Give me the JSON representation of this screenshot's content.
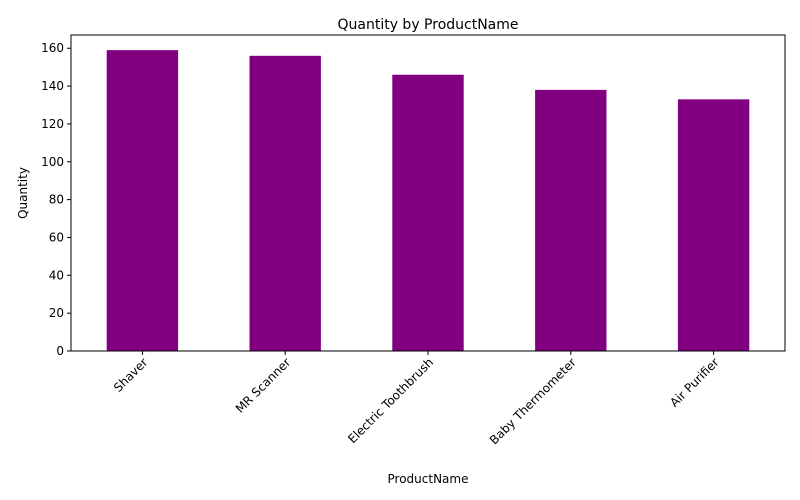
{
  "chart_data": {
    "type": "bar",
    "title": "Quantity by ProductName",
    "xlabel": "ProductName",
    "ylabel": "Quantity",
    "categories": [
      "Shaver",
      "MR Scanner",
      "Electric Toothbrush",
      "Baby Thermometer",
      "Air Purifier"
    ],
    "values": [
      159,
      156,
      146,
      138,
      133
    ],
    "ylim": [
      0,
      167
    ],
    "yticks": [
      "0",
      "20",
      "40",
      "60",
      "80",
      "100",
      "120",
      "140",
      "160"
    ],
    "bar_color": "#800080",
    "grid": false,
    "legend": "none",
    "xtick_rotation": "45 degrees"
  }
}
